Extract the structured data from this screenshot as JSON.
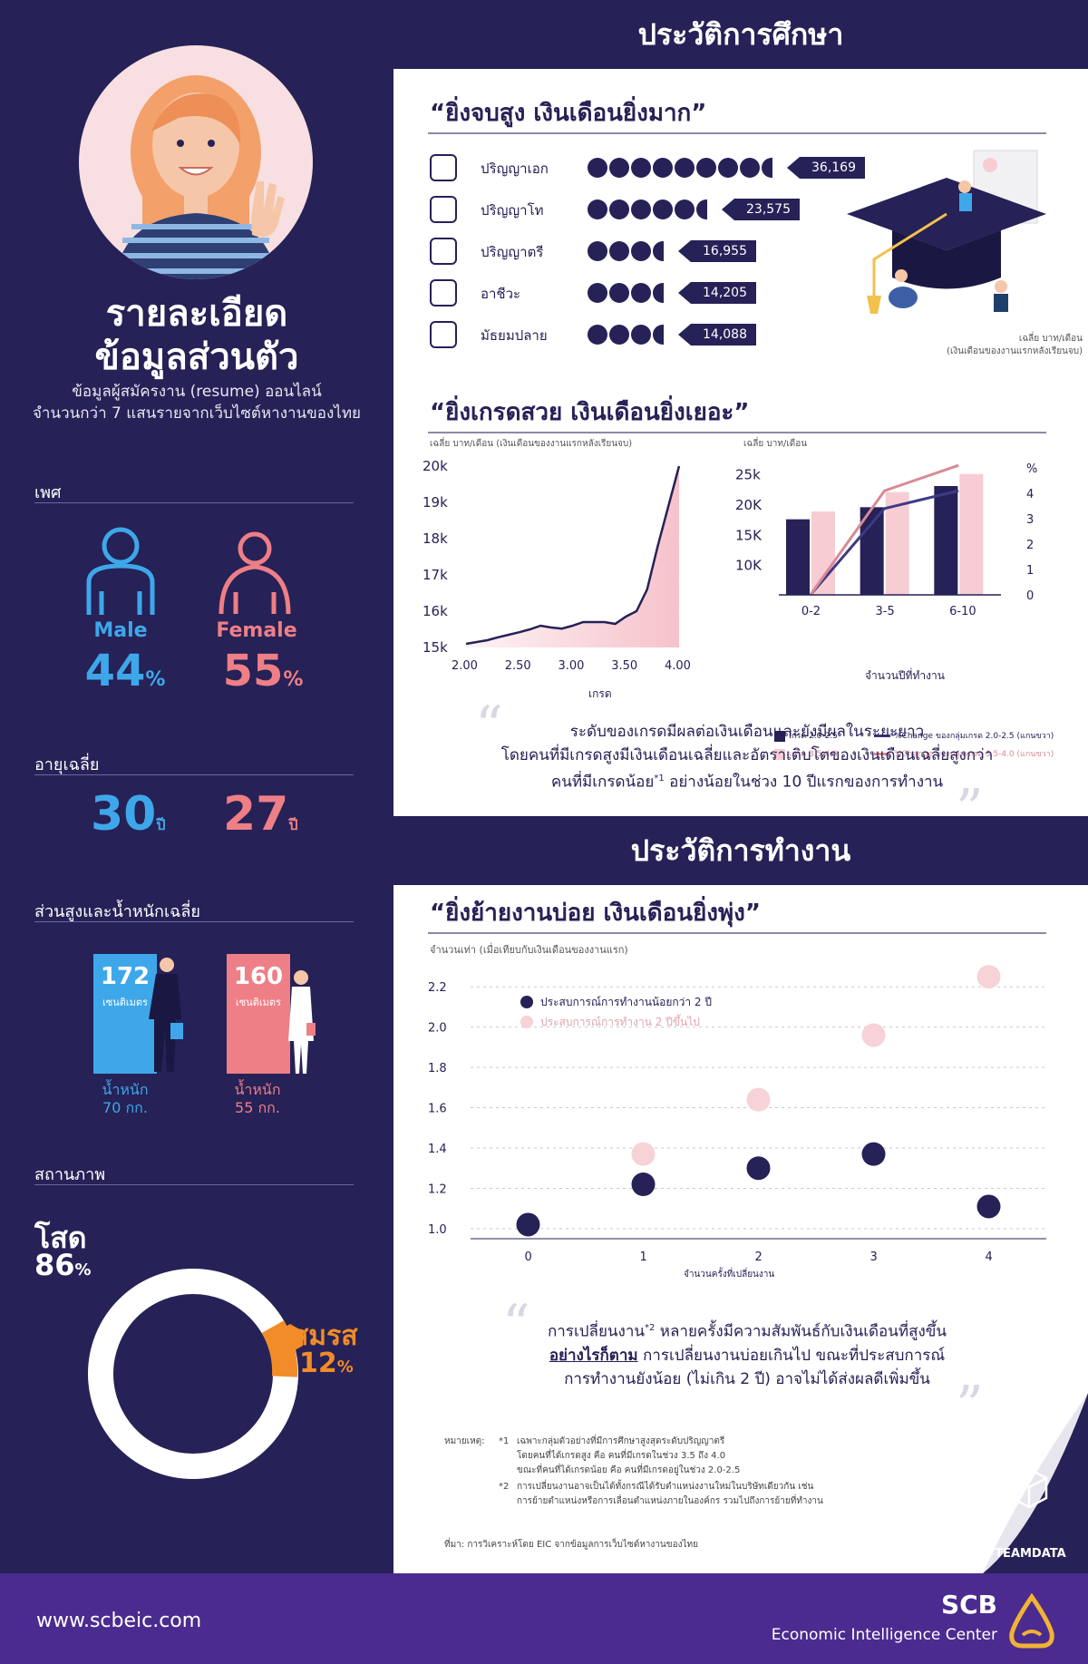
{
  "left": {
    "title_line1": "รายละเอียด",
    "title_line2": "ข้อมูลส่วนตัว",
    "subtitle_line1": "ข้อมูลผู้สมัครงาน (resume) ออนไลน์",
    "subtitle_line2": "จำนวนกว่า 7 แสนรายจากเว็บไซต์หางานของไทย",
    "gender": {
      "label": "เพศ",
      "male_label": "Male",
      "male_value": "44",
      "male_unit": "%",
      "female_label": "Female",
      "female_value": "55",
      "female_unit": "%"
    },
    "age": {
      "label": "อายุเฉลี่ย",
      "male": "30",
      "female": "27",
      "unit": "ปี"
    },
    "body": {
      "label": "ส่วนสูงและน้ำหนักเฉลี่ย",
      "male_height": "172",
      "female_height": "160",
      "height_unit": "เซนติเมตร",
      "weight_label": "น้ำหนัก",
      "male_weight": "70 กก.",
      "female_weight": "55 กก."
    },
    "status": {
      "label": "สถานภาพ",
      "single_label": "โสด",
      "single_value": "86",
      "single_unit": "%",
      "married_label": "สมรส",
      "married_value": "12",
      "married_unit": "%"
    }
  },
  "education": {
    "band_title": "ประวัติการศึกษา",
    "q1_title": "“ยิ่งจบสูง เงินเดือนยิ่งมาก”",
    "levels": [
      {
        "label": "ปริญญาเอก",
        "value": "36,169",
        "icon": "graduation-cap-icon"
      },
      {
        "label": "ปริญญาโท",
        "value": "23,575",
        "icon": "certificate-icon"
      },
      {
        "label": "ปริญญาตรี",
        "value": "16,955",
        "icon": "document-grade-icon"
      },
      {
        "label": "อาชีวะ",
        "value": "14,205",
        "icon": "diploma-frame-icon"
      },
      {
        "label": "มัธยมปลาย",
        "value": "14,088",
        "icon": "scroll-icon"
      }
    ],
    "q1_caption_line1": "เฉลี่ย บาท/เดือน",
    "q1_caption_line2": "(เงินเดือนของงานแรกหลังเรียนจบ)",
    "q2_title": "“ยิ่งเกรดสวย เงินเดือนยิ่งเยอะ”",
    "gpa_caption": "เฉลี่ย บาท/เดือน (เงินเดือนของงานแรกหลังเรียนจบ)",
    "gpa_xlabel": "เกรด",
    "growth_caption": "เฉลี่ย บาท/เดือน",
    "growth_pct_label": "%",
    "growth_xlabel": "จำนวนปีที่ทำงาน",
    "legend": [
      {
        "label": "เกรด 2.0-2.5",
        "color": "#262156"
      },
      {
        "label": "%Change ของกลุ่มเกรด 2.0-2.5 (แกนขวา)",
        "color": "#3d3a86"
      },
      {
        "label": "เกรด 3.5-4.0",
        "color": "#f7cdd3"
      },
      {
        "label": "%Change ของกลุ่มเกรด 3.5-4.0 (แกนขวา)",
        "color": "#d98a95"
      }
    ],
    "quote_line1": "ระดับของเกรดมีผลต่อเงินเดือนและยังมีผลในระยะยาว",
    "quote_line2": "โดยคนที่มีเกรดสูงมีเงินเดือนเฉลี่ยและอัตราเติบโตของเงินเดือนเฉลี่ยสูงกว่า",
    "quote_line3": "คนที่มีเกรดน้อย",
    "quote_sup": "*1",
    "quote_line3b": " อย่างน้อยในช่วง 10 ปีแรกของการทำงาน"
  },
  "work": {
    "band_title": "ประวัติการทำงาน",
    "q3_title": "“ยิ่งย้ายงานบ่อย เงินเดือนยิ่งพุ่ง”",
    "caption": "จำนวนเท่า (เมื่อเทียบกับเงินเดือนของงานแรก)",
    "xlabel": "จำนวนครั้งที่เปลี่ยนงาน",
    "legend_a": "ประสบการณ์การทำงานน้อยกว่า 2 ปี",
    "legend_b": "ประสบการณ์การทำงาน 2 ปีขึ้นไป",
    "quote_line1a": "การเปลี่ยนงาน",
    "quote_sup": "*2",
    "quote_line1b": " หลายครั้งมีความสัมพันธ์กับเงินเดือนที่สูงขึ้น",
    "quote_line2a": "อย่างไรก็ตาม",
    "quote_line2b": " การเปลี่ยนงานบ่อยเกินไป ขณะที่ประสบการณ์",
    "quote_line3": "การทำงานยังน้อย (ไม่เกิน 2 ปี) อาจไม่ได้ส่งผลดีเพิ่มขึ้น",
    "notes_label": "หมายเหตุ:",
    "note1_mark": "*1",
    "note1_line1": "เฉพาะกลุ่มตัวอย่างที่มีการศึกษาสูงสุดระดับปริญญาตรี",
    "note1_line2": "โดยคนที่ได้เกรดสูง คือ คนที่มีเกรดในช่วง 3.5 ถึง 4.0",
    "note1_line3": "ขณะที่คนที่ได้เกรดน้อย คือ คนที่มีเกรดอยู่ในช่วง 2.0-2.5",
    "note2_mark": "*2",
    "note2_line1": "การเปลี่ยนงานอาจเป็นได้ทั้งกรณีได้รับตำแหน่งงานใหม่ในบริษัทเดียวกัน เช่น",
    "note2_line2": "การย้ายตำแหน่งหรือการเลื่อนตำแหน่งภายในองค์กร รวมไปถึงการย้ายที่ทำงาน",
    "source": "ที่มา: การวิเคราะห์โดย EIC จากข้อมูลการเว็บไซต์หางานของไทย",
    "hashtag": "#TEAMDATA"
  },
  "footer": {
    "url": "www.scbeic.com",
    "brand": "SCB",
    "brand_sub": "Economic Intelligence Center"
  },
  "chart_data": [
    {
      "type": "bar",
      "title": "“ยิ่งจบสูง เงินเดือนยิ่งมาก”",
      "categories": [
        "ปริญญาเอก",
        "ปริญญาโท",
        "ปริญญาตรี",
        "อาชีวะ",
        "มัธยมปลาย"
      ],
      "values": [
        36169,
        23575,
        16955,
        14205,
        14088
      ],
      "ylabel": "เฉลี่ย บาท/เดือน"
    },
    {
      "type": "area",
      "title": "",
      "ylabel": "เฉลี่ย บาท/เดือน (เงินเดือนของงานแรกหลังเรียนจบ)",
      "xlabel": "เกรด",
      "x": [
        2.0,
        2.1,
        2.2,
        2.3,
        2.4,
        2.5,
        2.6,
        2.7,
        2.8,
        2.9,
        3.0,
        3.1,
        3.2,
        3.3,
        3.4,
        3.5,
        3.6,
        3.7,
        3.8,
        3.9,
        4.0
      ],
      "y": [
        15100,
        15150,
        15200,
        15280,
        15350,
        15420,
        15500,
        15600,
        15550,
        15520,
        15600,
        15700,
        15700,
        15700,
        15650,
        15850,
        16000,
        16600,
        17800,
        18900,
        20000
      ],
      "xticks": [
        "2.00",
        "2.50",
        "3.00",
        "3.50",
        "4.00"
      ],
      "yticks": [
        "15k",
        "16k",
        "17k",
        "18k",
        "19k",
        "20k"
      ],
      "xlim": [
        2.0,
        4.0
      ],
      "ylim": [
        15000,
        20000
      ]
    },
    {
      "type": "bar",
      "title": "",
      "categories": [
        "0-2",
        "3-5",
        "6-10"
      ],
      "xlabel": "จำนวนปีที่ทำงาน",
      "ylabel": "เฉลี่ย บาท/เดือน",
      "series": [
        {
          "name": "เกรด 2.0-2.5",
          "values": [
            17500,
            19500,
            23000
          ]
        },
        {
          "name": "เกรด 3.5-4.0",
          "values": [
            18800,
            22000,
            25000
          ]
        }
      ],
      "line_series": [
        {
          "name": "%Change ของกลุ่มเกรด 2.0-2.5 (แกนขวา)",
          "values": [
            0,
            3.4,
            4.1
          ]
        },
        {
          "name": "%Change ของกลุ่มเกรด 3.5-4.0 (แกนขวา)",
          "values": [
            0,
            4.1,
            5.1
          ]
        }
      ],
      "yticks": [
        "10K",
        "15K",
        "20K",
        "25k"
      ],
      "y2ticks": [
        "0",
        "1",
        "2",
        "3",
        "4",
        "%"
      ],
      "ylim": [
        5000,
        26000
      ],
      "y2lim": [
        0,
        5
      ]
    },
    {
      "type": "scatter",
      "title": "“ยิ่งย้ายงานบ่อย เงินเดือนยิ่งพุ่ง”",
      "ylabel": "จำนวนเท่า (เมื่อเทียบกับเงินเดือนของงานแรก)",
      "xlabel": "จำนวนครั้งที่เปลี่ยนงาน",
      "series": [
        {
          "name": "ประสบการณ์การทำงานน้อยกว่า 2 ปี",
          "x": [
            0,
            1,
            2,
            3,
            4
          ],
          "y": [
            1.02,
            1.22,
            1.3,
            1.37,
            1.11
          ],
          "color": "#262156"
        },
        {
          "name": "ประสบการณ์การทำงาน 2 ปีขึ้นไป",
          "x": [
            1,
            2,
            3,
            4
          ],
          "y": [
            1.37,
            1.64,
            1.96,
            2.25
          ],
          "color": "#f7d2d7"
        }
      ],
      "xticks": [
        "0",
        "1",
        "2",
        "3",
        "4"
      ],
      "yticks": [
        "1.0",
        "1.2",
        "1.4",
        "1.6",
        "1.8",
        "2.0",
        "2.2"
      ],
      "xlim": [
        -0.5,
        4.5
      ],
      "ylim": [
        0.95,
        2.3
      ]
    }
  ]
}
